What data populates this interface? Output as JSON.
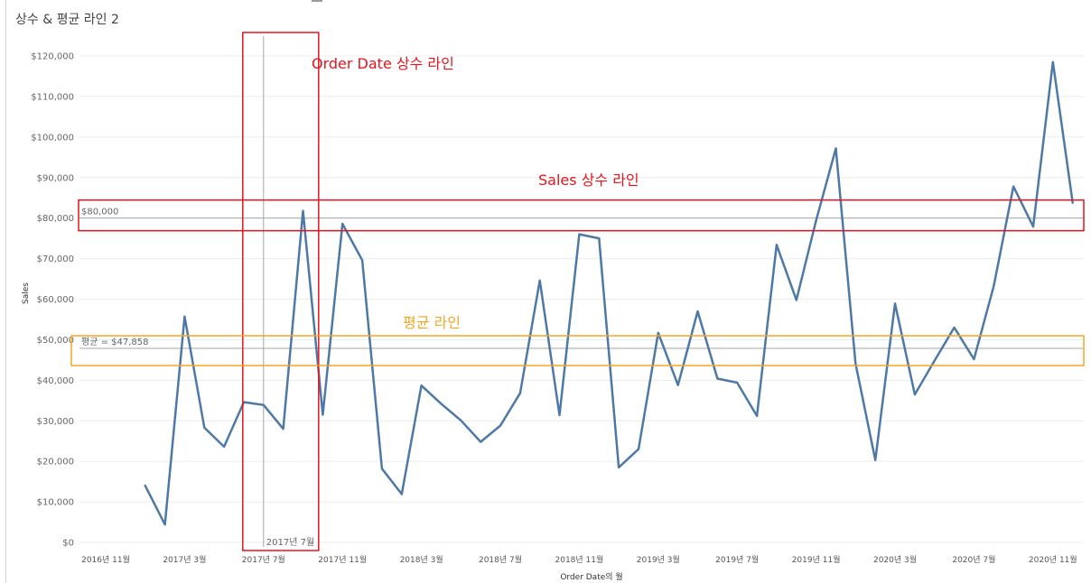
{
  "sheet_title": "상수 & 평균 라인 2",
  "chart_data": {
    "type": "line",
    "title": "상수 & 평균 라인 2",
    "xlabel": "Order Date의 월",
    "ylabel": "Sales",
    "ylim": [
      0,
      125000
    ],
    "y_ticks": [
      "$0",
      "$10,000",
      "$20,000",
      "$30,000",
      "$40,000",
      "$50,000",
      "$60,000",
      "$70,000",
      "$80,000",
      "$90,000",
      "$100,000",
      "$110,000",
      "$120,000"
    ],
    "y_tick_values": [
      0,
      10000,
      20000,
      30000,
      40000,
      50000,
      60000,
      70000,
      80000,
      90000,
      100000,
      110000,
      120000
    ],
    "x_tick_labels": [
      "2016년 11월",
      "2017년 3월",
      "2017년 7월",
      "2017년 11월",
      "2018년 3월",
      "2018년 7월",
      "2018년 11월",
      "2019년 3월",
      "2019년 7월",
      "2019년 11월",
      "2020년 3월",
      "2020년 7월",
      "2020년 11월"
    ],
    "x_tick_months": [
      "2016-11",
      "2017-03",
      "2017-07",
      "2017-11",
      "2018-03",
      "2018-07",
      "2018-11",
      "2019-03",
      "2019-07",
      "2019-11",
      "2020-03",
      "2020-07",
      "2020-11"
    ],
    "grid": true,
    "line_color": "#4e79a7",
    "series": [
      {
        "x": [
          "2017-01",
          "2017-02",
          "2017-03",
          "2017-04",
          "2017-05",
          "2017-06",
          "2017-07",
          "2017-08",
          "2017-09",
          "2017-10",
          "2017-11",
          "2017-12",
          "2018-01",
          "2018-02",
          "2018-03",
          "2018-04",
          "2018-05",
          "2018-06",
          "2018-07",
          "2018-08",
          "2018-09",
          "2018-10",
          "2018-11",
          "2018-12",
          "2019-01",
          "2019-02",
          "2019-03",
          "2019-04",
          "2019-05",
          "2019-06",
          "2019-07",
          "2019-08",
          "2019-09",
          "2019-10",
          "2019-11",
          "2019-12",
          "2020-01",
          "2020-02",
          "2020-03",
          "2020-04",
          "2020-05",
          "2020-06",
          "2020-07",
          "2020-08",
          "2020-09",
          "2020-10",
          "2020-11",
          "2020-12"
        ],
        "values": [
          14000,
          4400,
          55700,
          28300,
          23600,
          34600,
          33900,
          28000,
          81800,
          31500,
          78600,
          69600,
          18200,
          11900,
          38700,
          34200,
          30100,
          24800,
          28800,
          36800,
          64600,
          31400,
          76000,
          75000,
          18500,
          23000,
          51700,
          38800,
          57000,
          40400,
          39400,
          31200,
          73400,
          59800,
          79400,
          97200,
          44100,
          20300,
          58900,
          36500,
          44800,
          53000,
          45200,
          63200,
          87800,
          77900,
          118500,
          83800
        ]
      }
    ],
    "reference_lines": [
      {
        "axis": "y",
        "value": 80000,
        "label": "$80,000"
      },
      {
        "axis": "y",
        "value": 47858,
        "label": "평균 = $47,858"
      },
      {
        "axis": "x",
        "value": "2017-07",
        "label": "2017년 7월"
      }
    ],
    "annotations": [
      {
        "text": "Order Date 상수 라인",
        "color": "#e8141d"
      },
      {
        "text": "Sales 상수 라인",
        "color": "#e8141d"
      },
      {
        "text": "평균 라인",
        "color": "#f5a623"
      }
    ]
  }
}
